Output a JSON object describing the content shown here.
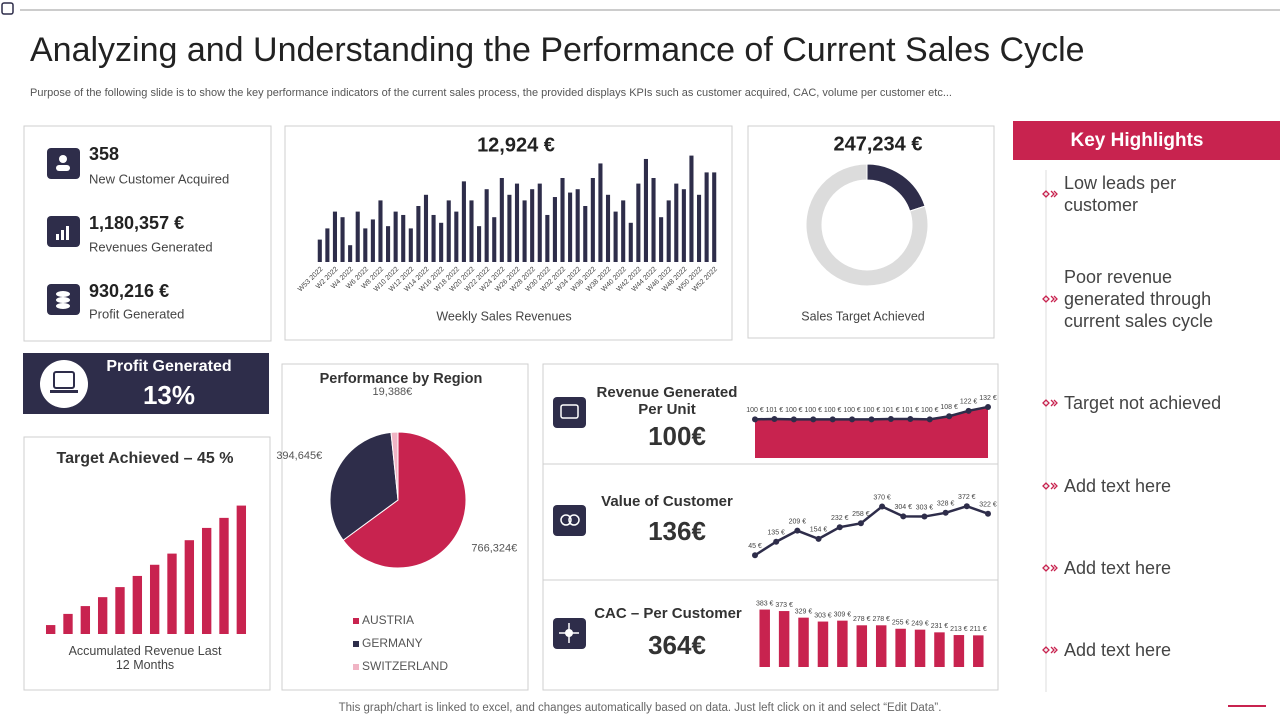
{
  "header": {
    "title": "Analyzing and Understanding the Performance of Current Sales Cycle",
    "subtitle": "Purpose of the following slide is to show the key performance indicators of the current sales process, the provided displays KPIs such as customer acquired, CAC, volume per customer etc..."
  },
  "kpis": [
    {
      "value": "358",
      "label": "New Customer Acquired"
    },
    {
      "value": "1,180,357 €",
      "label": "Revenues Generated"
    },
    {
      "value": "930,216 €",
      "label": "Profit Generated"
    }
  ],
  "profit": {
    "label": "Profit Generated",
    "value": "13%"
  },
  "highlights": {
    "title": "Key Highlights",
    "items": [
      "Low leads per customer",
      "Poor revenue generated through current sales cycle",
      "Target not achieved",
      "Add text here",
      "Add text here",
      "Add text here"
    ]
  },
  "footer": "This graph/chart is linked to excel,  and changes automatically based on data. Just left click on it and select “Edit Data”.",
  "chart_data": [
    {
      "type": "bar",
      "title": "12,924 €",
      "xlabel": "Weekly Sales Revenues",
      "categories": [
        "W53 2022",
        null,
        "W2 2022",
        null,
        "W4 2022",
        null,
        "W6 2022",
        null,
        "W8 2022",
        null,
        "W10 2022",
        null,
        "W12 2022",
        null,
        "W14 2022",
        null,
        "W16 2022",
        null,
        "W18 2022",
        null,
        "W20 2022",
        null,
        "W22 2022",
        null,
        "W24 2022",
        null,
        "W26 2022",
        null,
        "W28 2022",
        null,
        "W30 2022",
        null,
        "W32 2022",
        null,
        "W34 2022",
        null,
        "W36 2022",
        null,
        "W38 2022",
        null,
        "W40 2022",
        null,
        "W42 2022",
        null,
        "W44 2022",
        null,
        "W46 2022",
        null,
        "W48 2022",
        null,
        "W50 2022",
        null,
        "W52 2022"
      ],
      "values": [
        20,
        30,
        45,
        40,
        15,
        45,
        30,
        38,
        55,
        32,
        45,
        42,
        30,
        50,
        60,
        42,
        35,
        55,
        45,
        72,
        55,
        32,
        65,
        40,
        75,
        60,
        70,
        55,
        65,
        70,
        42,
        58,
        75,
        62,
        65,
        50,
        75,
        88,
        60,
        45,
        55,
        35,
        70,
        92,
        75,
        40,
        55,
        70,
        65,
        95,
        60,
        80,
        80
      ],
      "color": "#2e2d4a",
      "ylim": [
        0,
        100
      ]
    },
    {
      "type": "donut",
      "title": "247,234 €",
      "xlabel": "Sales Target Achieved",
      "values": [
        20,
        80
      ],
      "colors": [
        "#2e2d4a",
        "#dcdcdc"
      ]
    },
    {
      "type": "pie",
      "title": "Performance by Region",
      "categories": [
        "AUSTRIA",
        "GERMANY",
        "SWITZERLAND"
      ],
      "values": [
        766324,
        394645,
        19388
      ],
      "value_labels": [
        "766,324€",
        "394,645€",
        "19,388€"
      ],
      "colors": [
        "#c8234f",
        "#2e2d4a",
        "#f0b4c4"
      ]
    },
    {
      "type": "bar",
      "title": "Target Achieved – 45 %",
      "xlabel": "Accumulated Revenue Last 12 Months",
      "values": [
        8,
        18,
        25,
        33,
        42,
        52,
        62,
        72,
        84,
        95,
        104,
        115
      ],
      "color": "#c8234f",
      "ylim": [
        0,
        120
      ]
    },
    {
      "type": "area",
      "title": "Revenue Generated Per Unit",
      "value": "100€",
      "values": [
        100,
        101,
        100,
        100,
        100,
        100,
        100,
        101,
        101,
        100,
        108,
        122,
        132
      ],
      "value_labels": [
        "100 €",
        "101 €",
        "100 €",
        "100 €",
        "100 €",
        "100 €",
        "100 €",
        "101 €",
        "101 €",
        "100 €",
        "108 €",
        "122 €",
        "132 €"
      ],
      "color": "#c8234f",
      "line_color": "#2e2d4a",
      "ylim": [
        0,
        150
      ]
    },
    {
      "type": "line",
      "title": "Value of Customer",
      "value": "136€",
      "values": [
        45,
        135,
        209,
        154,
        232,
        258,
        370,
        304,
        303,
        328,
        372,
        322
      ],
      "value_labels": [
        "45 €",
        "135 €",
        "209 €",
        "154 €",
        "232 €",
        "258 €",
        "370 €",
        "304 €",
        "303 €",
        "328 €",
        "372 €",
        "322 €"
      ],
      "line_color": "#2e2d4a",
      "ylim": [
        0,
        400
      ]
    },
    {
      "type": "bar",
      "title": "CAC – Per Customer",
      "value": "364€",
      "values": [
        383,
        373,
        329,
        303,
        309,
        278,
        278,
        255,
        249,
        231,
        213,
        211
      ],
      "value_labels": [
        "383 €",
        "373 €",
        "329 €",
        "303 €",
        "309 €",
        "278 €",
        "278 €",
        "255 €",
        "249 €",
        "231 €",
        "213 €",
        "211 €"
      ],
      "color": "#c8234f",
      "ylim": [
        0,
        400
      ]
    }
  ]
}
